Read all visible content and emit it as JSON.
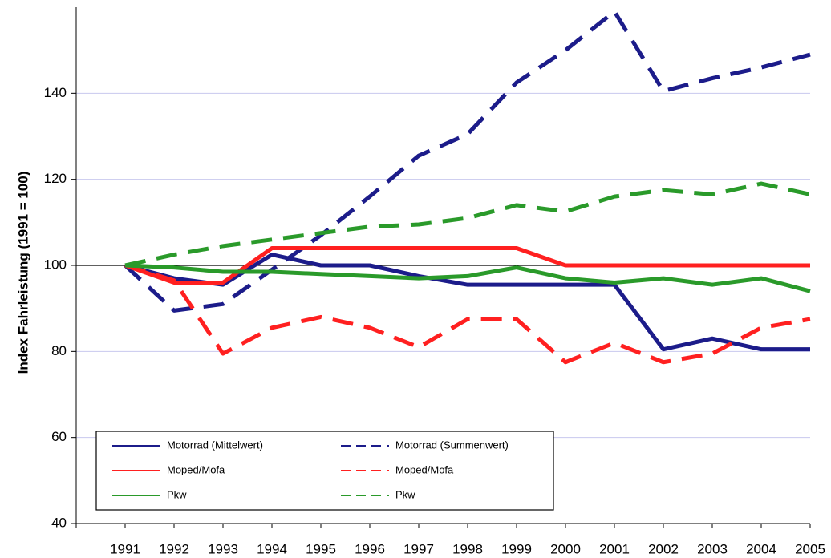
{
  "chart_data": {
    "type": "line",
    "y_label": "Index Fahrleistung (1991 = 100)",
    "categories": [
      "1991",
      "1992",
      "1993",
      "1994",
      "1995",
      "1996",
      "1997",
      "1998",
      "1999",
      "2000",
      "2001",
      "2002",
      "2003",
      "2004",
      "2005"
    ],
    "series": [
      {
        "name": "Motorrad (Mittelwert)",
        "color": "#1c1c8a",
        "style": "solid",
        "values": [
          100,
          97,
          95.5,
          102.5,
          100,
          100,
          97.5,
          95.5,
          95.5,
          95.5,
          95.5,
          80.5,
          83,
          80.5,
          80.5
        ]
      },
      {
        "name": "Motorrad (Summenwert)",
        "color": "#1c1c8a",
        "style": "dashed",
        "values": [
          100,
          89.5,
          91,
          99,
          107,
          116,
          125.5,
          130.5,
          142.5,
          150,
          159,
          140.5,
          143.5,
          146,
          149
        ]
      },
      {
        "name": "Moped/Mofa",
        "color": "#ff2020",
        "style": "solid",
        "values": [
          100,
          96,
          96,
          104,
          104,
          104,
          104,
          104,
          104,
          100,
          100,
          100,
          100,
          100,
          100
        ]
      },
      {
        "name": "Moped/Mofa",
        "color": "#ff2020",
        "style": "dashed",
        "values": [
          100,
          96.5,
          79.5,
          85.5,
          88,
          85.5,
          81,
          87.5,
          87.5,
          77.5,
          82,
          77.5,
          79.5,
          85.5,
          87.5
        ]
      },
      {
        "name": "Pkw",
        "color": "#2a9a2a",
        "style": "solid",
        "values": [
          100,
          99.5,
          98.5,
          98.5,
          98,
          97.5,
          97,
          97.5,
          99.5,
          97,
          96,
          97,
          95.5,
          97,
          94
        ]
      },
      {
        "name": "Pkw",
        "color": "#2a9a2a",
        "style": "dashed",
        "values": [
          100,
          102.5,
          104.5,
          106,
          107.5,
          109,
          109.5,
          111,
          114,
          112.5,
          116,
          117.5,
          116.5,
          119,
          116.5
        ]
      }
    ],
    "ylim": [
      40,
      160
    ],
    "yticks": [
      40,
      60,
      80,
      100,
      120,
      140
    ],
    "grid": true,
    "hline": 100,
    "legend": "lower left"
  }
}
